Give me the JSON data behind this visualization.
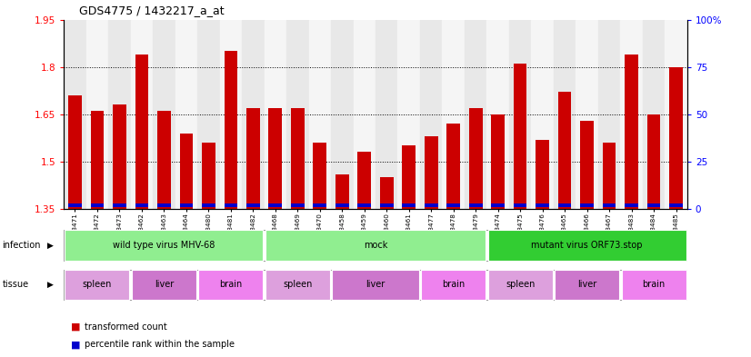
{
  "title": "GDS4775 / 1432217_a_at",
  "samples": [
    "GSM1243471",
    "GSM1243472",
    "GSM1243473",
    "GSM1243462",
    "GSM1243463",
    "GSM1243464",
    "GSM1243480",
    "GSM1243481",
    "GSM1243482",
    "GSM1243468",
    "GSM1243469",
    "GSM1243470",
    "GSM1243458",
    "GSM1243459",
    "GSM1243460",
    "GSM1243461",
    "GSM1243477",
    "GSM1243478",
    "GSM1243479",
    "GSM1243474",
    "GSM1243475",
    "GSM1243476",
    "GSM1243465",
    "GSM1243466",
    "GSM1243467",
    "GSM1243483",
    "GSM1243484",
    "GSM1243485"
  ],
  "red_values": [
    1.71,
    1.66,
    1.68,
    1.84,
    1.66,
    1.59,
    1.56,
    1.85,
    1.67,
    1.67,
    1.67,
    1.56,
    1.46,
    1.53,
    1.45,
    1.55,
    1.58,
    1.62,
    1.67,
    1.65,
    1.81,
    1.57,
    1.72,
    1.63,
    1.56,
    1.84,
    1.65,
    1.8
  ],
  "y_min": 1.35,
  "y_max": 1.95,
  "y_ticks": [
    1.35,
    1.5,
    1.65,
    1.8,
    1.95
  ],
  "y_right_ticks": [
    0,
    25,
    50,
    75,
    100
  ],
  "bar_color_red": "#CC0000",
  "bar_color_blue": "#0000CC",
  "bar_width": 0.6,
  "inf_groups": [
    {
      "label": "wild type virus MHV-68",
      "start": 0,
      "end": 9,
      "color": "#90EE90"
    },
    {
      "label": "mock",
      "start": 9,
      "end": 19,
      "color": "#90EE90"
    },
    {
      "label": "mutant virus ORF73.stop",
      "start": 19,
      "end": 28,
      "color": "#32CD32"
    }
  ],
  "tissue_groups": [
    {
      "label": "spleen",
      "start": 0,
      "end": 3,
      "color": "#DDA0DD"
    },
    {
      "label": "liver",
      "start": 3,
      "end": 6,
      "color": "#CC77CC"
    },
    {
      "label": "brain",
      "start": 6,
      "end": 9,
      "color": "#EE82EE"
    },
    {
      "label": "spleen",
      "start": 9,
      "end": 12,
      "color": "#DDA0DD"
    },
    {
      "label": "liver",
      "start": 12,
      "end": 16,
      "color": "#CC77CC"
    },
    {
      "label": "brain",
      "start": 16,
      "end": 19,
      "color": "#EE82EE"
    },
    {
      "label": "spleen",
      "start": 19,
      "end": 22,
      "color": "#DDA0DD"
    },
    {
      "label": "liver",
      "start": 22,
      "end": 25,
      "color": "#CC77CC"
    },
    {
      "label": "brain",
      "start": 25,
      "end": 28,
      "color": "#EE82EE"
    }
  ]
}
